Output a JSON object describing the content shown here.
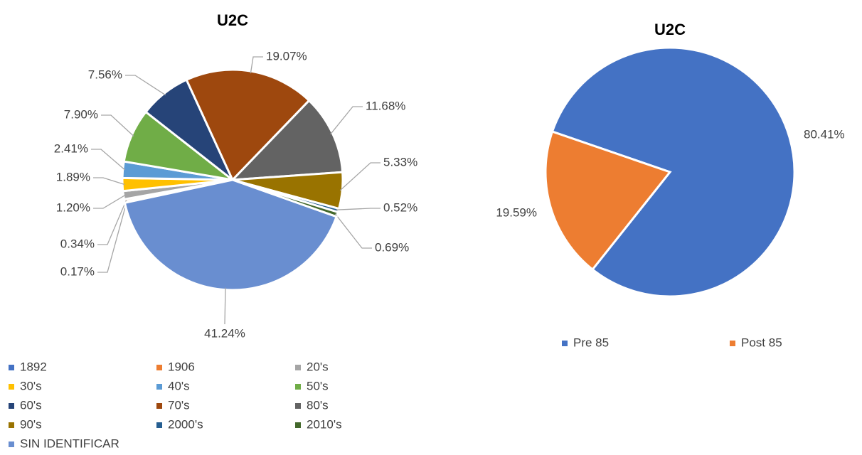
{
  "chart_data": [
    {
      "type": "pie",
      "title": "U2C",
      "categories": [
        "1892",
        "1906",
        "20's",
        "30's",
        "40's",
        "50's",
        "60's",
        "70's",
        "80's",
        "90's",
        "2000's",
        "2010's",
        "SIN IDENTIFICAR"
      ],
      "values": [
        0.17,
        0.34,
        1.2,
        1.89,
        2.41,
        7.9,
        7.56,
        19.07,
        11.68,
        5.33,
        0.52,
        0.69,
        41.24
      ],
      "value_labels": [
        "0.17%",
        "0.34%",
        "1.20%",
        "1.89%",
        "2.41%",
        "7.90%",
        "7.56%",
        "19.07%",
        "11.68%",
        "5.33%",
        "0.52%",
        "0.69%",
        "41.24%"
      ],
      "colors": [
        "#4472c4",
        "#ed7d31",
        "#a5a5a5",
        "#ffc000",
        "#5b9bd5",
        "#70ad47",
        "#264478",
        "#9e480e",
        "#636363",
        "#997300",
        "#255e91",
        "#43682b",
        "#698ed0"
      ],
      "legend": "bottom"
    },
    {
      "type": "pie",
      "title": "U2C",
      "categories": [
        "Pre 85",
        "Post 85"
      ],
      "values": [
        80.41,
        19.59
      ],
      "value_labels": [
        "80.41%",
        "19.59%"
      ],
      "colors": [
        "#4472c4",
        "#ed7d31"
      ],
      "legend": "bottom"
    }
  ]
}
